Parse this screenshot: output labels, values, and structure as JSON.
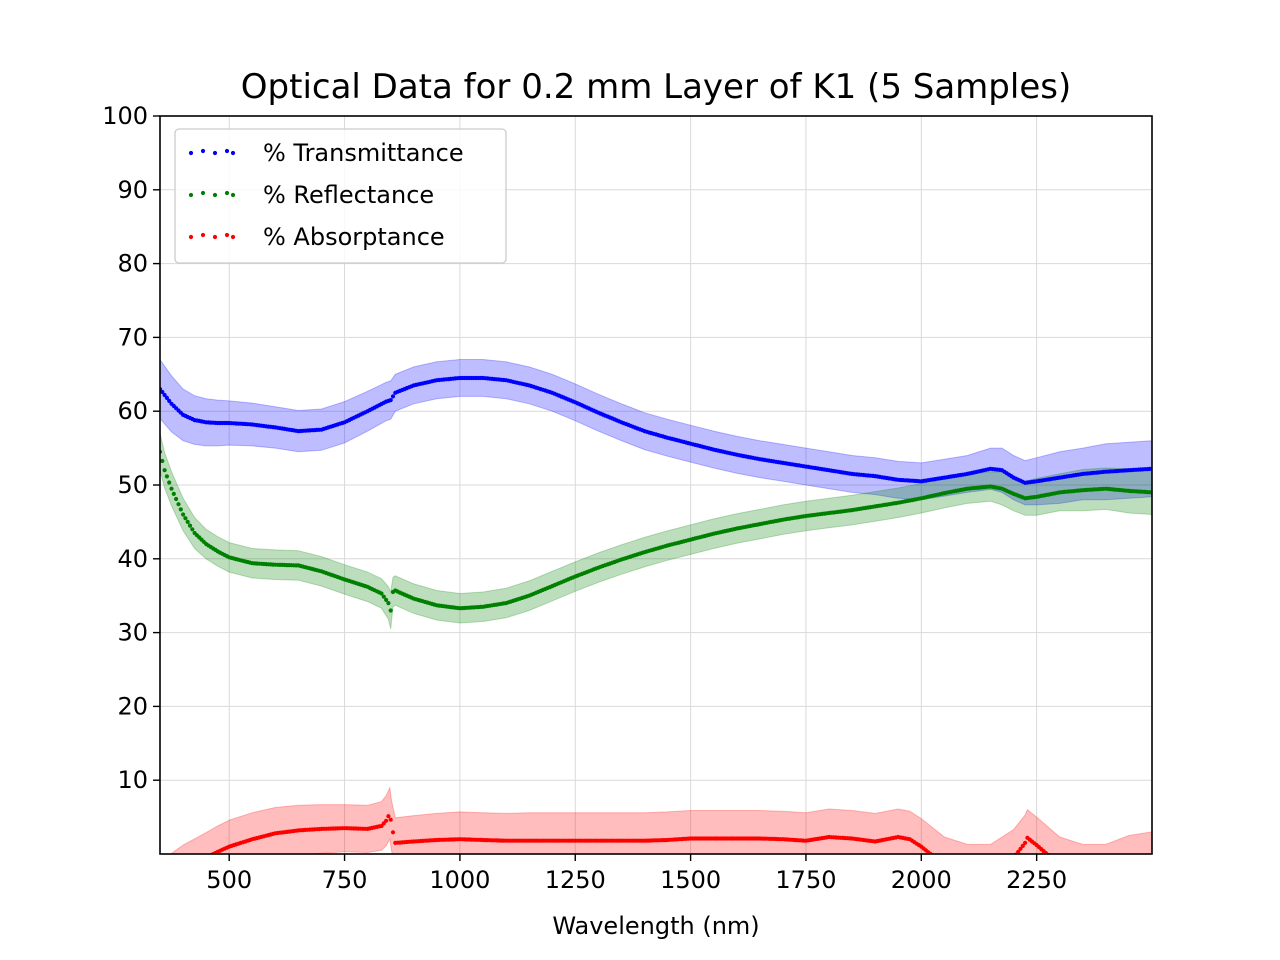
{
  "chart_data": {
    "type": "line",
    "title": "Optical Data for 0.2 mm Layer of K1 (5 Samples)",
    "xlabel": "Wavelength (nm)",
    "ylabel": "",
    "xlim": [
      350,
      2500
    ],
    "ylim": [
      0,
      100
    ],
    "x_ticks": [
      500,
      750,
      1000,
      1250,
      1500,
      1750,
      2000,
      2250
    ],
    "y_ticks": [
      10,
      20,
      30,
      40,
      50,
      60,
      70,
      80,
      90,
      100
    ],
    "grid": true,
    "legend_position": "top-left",
    "series": [
      {
        "name": "% Transmittance",
        "color": "#0000ff",
        "band_color": "#0000ff",
        "x": [
          350,
          375,
          400,
          425,
          450,
          475,
          500,
          550,
          600,
          650,
          700,
          750,
          800,
          840,
          850,
          860,
          900,
          950,
          1000,
          1050,
          1100,
          1150,
          1200,
          1250,
          1300,
          1350,
          1400,
          1450,
          1500,
          1550,
          1600,
          1650,
          1700,
          1750,
          1800,
          1850,
          1900,
          1950,
          2000,
          2050,
          2100,
          2150,
          2175,
          2200,
          2225,
          2250,
          2300,
          2350,
          2400,
          2450,
          2500
        ],
        "y": [
          63,
          61,
          59.5,
          58.8,
          58.5,
          58.4,
          58.4,
          58.2,
          57.8,
          57.3,
          57.5,
          58.5,
          60,
          61.3,
          61.5,
          62.5,
          63.5,
          64.2,
          64.5,
          64.5,
          64.2,
          63.5,
          62.5,
          61.2,
          59.8,
          58.5,
          57.3,
          56.4,
          55.6,
          54.8,
          54.1,
          53.5,
          53,
          52.5,
          52,
          51.5,
          51.2,
          50.7,
          50.5,
          51,
          51.5,
          52.2,
          52,
          51,
          50.3,
          50.5,
          51,
          51.5,
          51.8,
          52,
          52.2
        ],
        "band": [
          4,
          3.8,
          3.5,
          3.3,
          3.2,
          3.1,
          3,
          2.9,
          2.8,
          2.8,
          2.8,
          2.8,
          2.7,
          2.6,
          2.6,
          2.5,
          2.5,
          2.5,
          2.5,
          2.5,
          2.5,
          2.5,
          2.5,
          2.5,
          2.5,
          2.5,
          2.5,
          2.5,
          2.5,
          2.5,
          2.5,
          2.5,
          2.5,
          2.5,
          2.5,
          2.5,
          2.5,
          2.5,
          2.5,
          2.5,
          2.5,
          2.8,
          3,
          3,
          3,
          3.2,
          3.5,
          3.5,
          3.8,
          3.8,
          3.8
        ]
      },
      {
        "name": "% Reflectance",
        "color": "#008000",
        "band_color": "#008000",
        "x": [
          350,
          360,
          375,
          400,
          425,
          450,
          475,
          500,
          550,
          600,
          650,
          700,
          750,
          800,
          830,
          845,
          850,
          855,
          860,
          900,
          950,
          1000,
          1050,
          1100,
          1150,
          1200,
          1250,
          1300,
          1350,
          1400,
          1450,
          1500,
          1550,
          1600,
          1650,
          1700,
          1750,
          1800,
          1850,
          1900,
          1950,
          2000,
          2050,
          2100,
          2150,
          2175,
          2200,
          2225,
          2250,
          2300,
          2350,
          2400,
          2450,
          2500
        ],
        "y": [
          54.5,
          52,
          49.5,
          46,
          43.5,
          42,
          41,
          40.2,
          39.4,
          39.2,
          39.1,
          38.3,
          37.2,
          36.2,
          35.3,
          34,
          33,
          35.5,
          35.7,
          34.6,
          33.7,
          33.3,
          33.5,
          34,
          35,
          36.3,
          37.6,
          38.8,
          39.9,
          40.9,
          41.8,
          42.6,
          43.4,
          44.1,
          44.7,
          45.3,
          45.8,
          46.2,
          46.6,
          47.1,
          47.6,
          48.2,
          48.9,
          49.5,
          49.8,
          49.5,
          48.8,
          48.2,
          48.4,
          49,
          49.3,
          49.5,
          49.2,
          49
        ],
        "band": [
          2.5,
          2.4,
          2.3,
          2.2,
          2.1,
          2,
          2,
          2,
          2,
          2,
          2,
          2,
          2,
          2,
          2,
          2.2,
          2.5,
          2,
          2,
          2,
          2,
          2,
          2,
          2,
          2,
          2,
          2,
          2,
          2,
          2,
          2,
          2,
          2,
          2,
          2,
          2,
          2,
          2,
          2,
          2,
          2,
          2,
          2,
          2,
          2,
          2.2,
          2.3,
          2.3,
          2.5,
          2.5,
          2.8,
          2.8,
          3,
          3
        ]
      },
      {
        "name": "% Absorptance",
        "color": "#ff0000",
        "band_color": "#ff0000",
        "x": [
          350,
          400,
          450,
          475,
          500,
          550,
          600,
          650,
          700,
          750,
          800,
          830,
          840,
          848,
          852,
          860,
          900,
          950,
          1000,
          1050,
          1100,
          1150,
          1200,
          1250,
          1300,
          1350,
          1400,
          1450,
          1500,
          1550,
          1600,
          1650,
          1700,
          1750,
          1800,
          1850,
          1900,
          1950,
          1975,
          2000,
          2050,
          2100,
          2150,
          2200,
          2225,
          2230,
          2250,
          2300,
          2350,
          2400,
          2450,
          2500
        ],
        "y": [
          -4,
          -2,
          -0.5,
          0.3,
          1,
          2,
          2.8,
          3.2,
          3.4,
          3.5,
          3.4,
          3.8,
          4.5,
          5.5,
          3.8,
          1.5,
          1.7,
          1.9,
          2,
          1.9,
          1.8,
          1.8,
          1.8,
          1.8,
          1.8,
          1.8,
          1.8,
          1.9,
          2.1,
          2.1,
          2.1,
          2.1,
          2,
          1.8,
          2.3,
          2.1,
          1.7,
          2.3,
          2,
          1,
          -1.5,
          -2.5,
          -2.5,
          -0.5,
          1.5,
          2.2,
          1.2,
          -1.5,
          -2.5,
          -2.5,
          -1.5,
          -1
        ],
        "band": [
          3,
          3.2,
          3.4,
          3.5,
          3.6,
          3.6,
          3.5,
          3.4,
          3.3,
          3.2,
          3.2,
          3.3,
          3.4,
          3.5,
          3.4,
          3.4,
          3.5,
          3.6,
          3.7,
          3.7,
          3.7,
          3.8,
          3.8,
          3.8,
          3.8,
          3.8,
          3.8,
          3.8,
          3.8,
          3.8,
          3.8,
          3.8,
          3.8,
          3.8,
          3.8,
          3.8,
          3.8,
          3.8,
          3.8,
          3.8,
          3.8,
          3.8,
          3.8,
          3.8,
          3.8,
          3.8,
          3.8,
          3.8,
          3.8,
          3.8,
          4,
          4
        ]
      }
    ]
  }
}
